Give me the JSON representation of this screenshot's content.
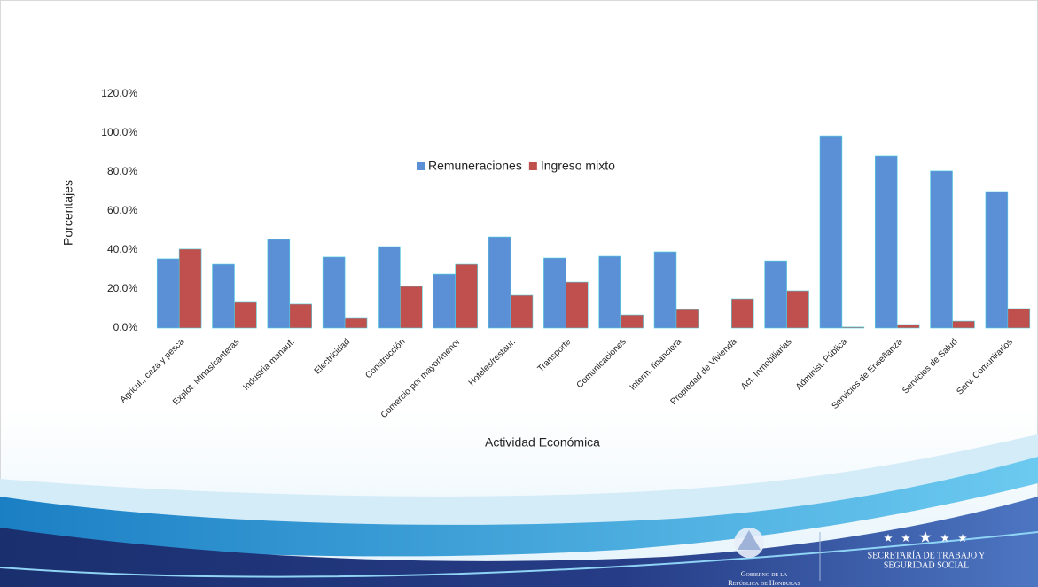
{
  "chart_data": {
    "type": "bar",
    "y_label": "Porcentajes",
    "x_label": "Actividad Económica",
    "categories": [
      "Agricul., caza y pesca",
      "Explot. Minas/canteras",
      "Industria manauf.",
      "Electricidad",
      "Construcción",
      "Comercio por mayor/menor",
      "Hoteles/restaur.",
      "Transporte",
      "Comunicaciones",
      "Interm. financiera",
      "Propiedad de Vivienda",
      "Act. Inmobiliarias",
      "Administ. Pública",
      "Servicios de Enseñanza",
      "Servicios de Salud",
      "Serv. Comunitarios"
    ],
    "series": [
      {
        "name": "Remuneraciones",
        "color": "#5b8fd6",
        "values": [
          35.5,
          32.7,
          45.5,
          36.4,
          41.8,
          27.7,
          46.8,
          35.9,
          36.8,
          39.1,
          0,
          34.5,
          98.6,
          88.2,
          80.5,
          70
        ]
      },
      {
        "name": "Ingreso mixto",
        "color": "#c0504d",
        "values": [
          40.5,
          13.2,
          12.3,
          5,
          21.4,
          32.7,
          16.8,
          23.6,
          6.8,
          9.5,
          15,
          19.1,
          0.5,
          1.8,
          3.6,
          10
        ]
      }
    ],
    "ylim": [
      0,
      120
    ],
    "yticks": [
      {
        "value": 0,
        "label": "0.0%"
      },
      {
        "value": 20,
        "label": "20.0%"
      },
      {
        "value": 40,
        "label": "40.0%"
      },
      {
        "value": 60,
        "label": "60.0%"
      },
      {
        "value": 80,
        "label": "80.0%"
      },
      {
        "value": 100,
        "label": "100.0%"
      },
      {
        "value": 120,
        "label": "120.0%"
      }
    ],
    "grid": false
  },
  "footer": {
    "government": [
      "Gobierno de la",
      "República de Honduras"
    ],
    "ministry": [
      "SECRETARÍA DE TRABAJO Y",
      "SEGURIDAD SOCIAL"
    ]
  }
}
